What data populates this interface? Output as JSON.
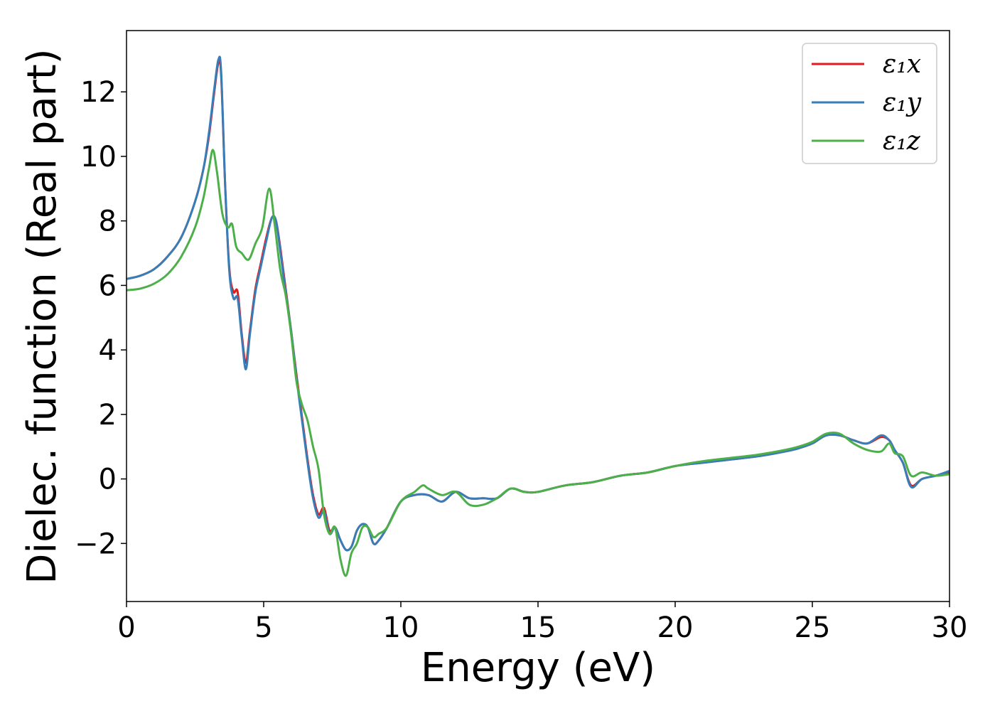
{
  "chart_data": {
    "type": "line",
    "title": "",
    "xlabel": "Energy (eV)",
    "ylabel": "Dielec. function (Real part)",
    "xlim": [
      0,
      30
    ],
    "ylim": [
      -3.8,
      13.9
    ],
    "x_ticks": [
      0,
      5,
      10,
      15,
      20,
      25,
      30
    ],
    "y_ticks": [
      -2,
      0,
      2,
      4,
      6,
      8,
      10,
      12
    ],
    "x_tick_labels": [
      "0",
      "5",
      "10",
      "15",
      "20",
      "25",
      "30"
    ],
    "y_tick_labels": [
      "−2",
      "0",
      "2",
      "4",
      "6",
      "8",
      "10",
      "12"
    ],
    "grid": false,
    "legend_position": "top-right",
    "series": [
      {
        "name": "ε₁x",
        "color": "#e41a1c",
        "x": [
          0,
          0.5,
          1,
          1.5,
          2,
          2.5,
          2.8,
          3.0,
          3.2,
          3.35,
          3.45,
          3.6,
          3.75,
          3.9,
          4.05,
          4.2,
          4.35,
          4.5,
          4.7,
          4.9,
          5.1,
          5.3,
          5.45,
          5.6,
          5.8,
          6.0,
          6.2,
          6.4,
          6.6,
          6.8,
          7.0,
          7.2,
          7.4,
          7.6,
          7.8,
          8.0,
          8.2,
          8.4,
          8.6,
          8.8,
          9.0,
          9.2,
          9.5,
          10.0,
          10.5,
          11.0,
          11.5,
          12.0,
          12.5,
          13.0,
          13.5,
          14.0,
          14.5,
          15.0,
          16.0,
          17.0,
          18.0,
          19.0,
          20.0,
          21.0,
          22.0,
          23.0,
          24.0,
          24.5,
          25.0,
          25.5,
          26.0,
          26.5,
          27.0,
          27.5,
          27.8,
          28.0,
          28.3,
          28.6,
          29.0,
          29.5,
          30.0
        ],
        "y": [
          6.2,
          6.3,
          6.5,
          6.9,
          7.5,
          8.6,
          9.6,
          10.6,
          12.0,
          12.9,
          12.5,
          9.0,
          6.5,
          5.8,
          5.8,
          4.5,
          3.6,
          4.6,
          5.9,
          6.7,
          7.5,
          8.1,
          8.0,
          7.2,
          5.9,
          4.6,
          3.2,
          1.9,
          0.6,
          -0.5,
          -1.1,
          -0.9,
          -1.6,
          -1.5,
          -1.9,
          -2.2,
          -2.1,
          -1.6,
          -1.4,
          -1.5,
          -2.0,
          -1.9,
          -1.5,
          -0.7,
          -0.5,
          -0.5,
          -0.7,
          -0.4,
          -0.6,
          -0.6,
          -0.6,
          -0.3,
          -0.4,
          -0.4,
          -0.2,
          -0.1,
          0.1,
          0.2,
          0.4,
          0.5,
          0.6,
          0.7,
          0.85,
          0.95,
          1.1,
          1.35,
          1.35,
          1.2,
          1.1,
          1.3,
          1.2,
          0.9,
          0.5,
          -0.2,
          0.0,
          0.1,
          0.2
        ]
      },
      {
        "name": "ε₁y",
        "color": "#377eb8",
        "x": [
          0,
          0.5,
          1,
          1.5,
          2,
          2.5,
          2.8,
          3.0,
          3.2,
          3.35,
          3.45,
          3.6,
          3.75,
          3.9,
          4.05,
          4.2,
          4.35,
          4.5,
          4.7,
          4.9,
          5.1,
          5.3,
          5.45,
          5.6,
          5.8,
          6.0,
          6.2,
          6.4,
          6.6,
          6.8,
          7.0,
          7.2,
          7.4,
          7.6,
          7.8,
          8.0,
          8.2,
          8.4,
          8.6,
          8.8,
          9.0,
          9.2,
          9.5,
          10.0,
          10.5,
          11.0,
          11.5,
          12.0,
          12.5,
          13.0,
          13.5,
          14.0,
          14.5,
          15.0,
          16.0,
          17.0,
          18.0,
          19.0,
          20.0,
          21.0,
          22.0,
          23.0,
          24.0,
          24.5,
          25.0,
          25.5,
          26.0,
          26.5,
          27.0,
          27.5,
          27.8,
          28.0,
          28.3,
          28.6,
          29.0,
          29.5,
          30.0
        ],
        "y": [
          6.2,
          6.3,
          6.5,
          6.9,
          7.5,
          8.6,
          9.6,
          10.7,
          12.1,
          13.0,
          12.6,
          9.0,
          6.4,
          5.6,
          5.6,
          4.4,
          3.4,
          4.5,
          5.8,
          6.6,
          7.4,
          8.1,
          8.0,
          7.1,
          5.8,
          4.6,
          3.1,
          1.8,
          0.5,
          -0.6,
          -1.2,
          -1.0,
          -1.7,
          -1.5,
          -1.9,
          -2.2,
          -2.1,
          -1.6,
          -1.4,
          -1.5,
          -2.0,
          -1.9,
          -1.5,
          -0.7,
          -0.5,
          -0.5,
          -0.7,
          -0.4,
          -0.6,
          -0.6,
          -0.6,
          -0.3,
          -0.4,
          -0.4,
          -0.2,
          -0.1,
          0.1,
          0.2,
          0.4,
          0.5,
          0.6,
          0.7,
          0.85,
          0.95,
          1.1,
          1.35,
          1.35,
          1.2,
          1.1,
          1.35,
          1.2,
          0.9,
          0.5,
          -0.25,
          0.0,
          0.1,
          0.25
        ]
      },
      {
        "name": "ε₁z",
        "color": "#4daf4a",
        "x": [
          0,
          0.5,
          1,
          1.5,
          2,
          2.5,
          2.8,
          3.0,
          3.15,
          3.3,
          3.5,
          3.7,
          3.85,
          4.0,
          4.2,
          4.45,
          4.7,
          4.95,
          5.2,
          5.4,
          5.6,
          5.8,
          6.0,
          6.2,
          6.4,
          6.6,
          6.8,
          7.0,
          7.2,
          7.4,
          7.6,
          7.8,
          8.0,
          8.2,
          8.4,
          8.6,
          8.8,
          9.0,
          9.2,
          9.5,
          10.0,
          10.5,
          10.8,
          11.0,
          11.5,
          12.0,
          12.5,
          13.0,
          13.5,
          14.0,
          14.5,
          15.0,
          16.0,
          17.0,
          18.0,
          19.0,
          20.0,
          21.0,
          22.0,
          23.0,
          24.0,
          24.5,
          25.0,
          25.5,
          26.0,
          26.5,
          27.0,
          27.5,
          27.8,
          28.0,
          28.3,
          28.6,
          29.0,
          29.5,
          30.0
        ],
        "y": [
          5.85,
          5.9,
          6.05,
          6.35,
          6.9,
          7.8,
          8.7,
          9.6,
          10.2,
          9.5,
          8.2,
          7.8,
          7.9,
          7.2,
          7.0,
          6.8,
          7.3,
          7.8,
          9.0,
          7.9,
          6.5,
          5.7,
          4.5,
          3.0,
          2.3,
          1.8,
          1.0,
          0.3,
          -1.1,
          -1.7,
          -1.5,
          -2.5,
          -3.0,
          -2.3,
          -2.0,
          -1.5,
          -1.5,
          -1.8,
          -1.7,
          -1.5,
          -0.7,
          -0.4,
          -0.2,
          -0.3,
          -0.5,
          -0.4,
          -0.8,
          -0.8,
          -0.6,
          -0.3,
          -0.4,
          -0.4,
          -0.2,
          -0.1,
          0.1,
          0.2,
          0.4,
          0.55,
          0.65,
          0.75,
          0.9,
          1.0,
          1.15,
          1.4,
          1.4,
          1.1,
          0.9,
          0.85,
          1.1,
          0.8,
          0.7,
          0.1,
          0.2,
          0.1,
          0.15
        ]
      }
    ]
  }
}
